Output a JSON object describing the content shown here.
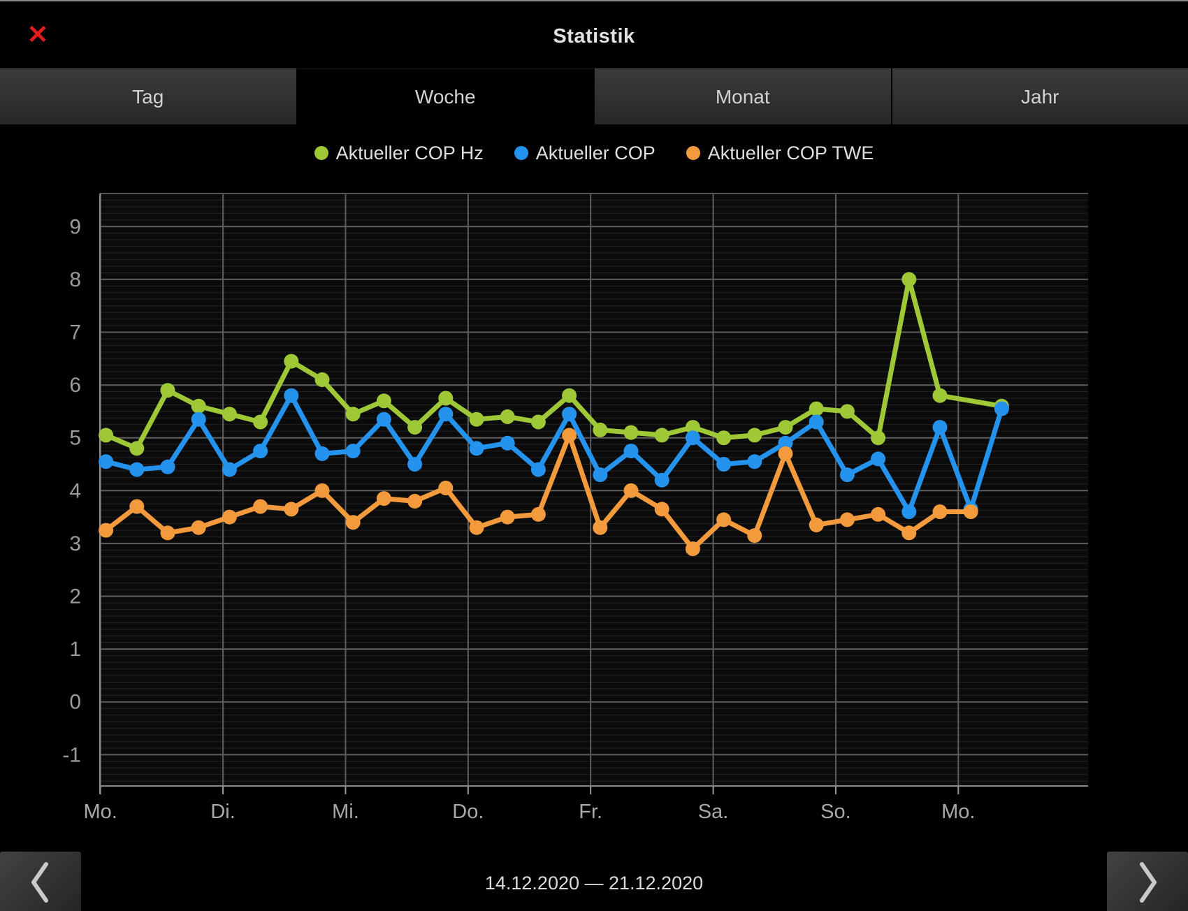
{
  "window": {
    "title": "Statistik",
    "close_icon": "close-icon"
  },
  "tabs": [
    {
      "label": "Tag",
      "active": false
    },
    {
      "label": "Woche",
      "active": true
    },
    {
      "label": "Monat",
      "active": false
    },
    {
      "label": "Jahr",
      "active": false
    }
  ],
  "legend": [
    {
      "label": "Aktueller COP Hz",
      "color": "#9fc836"
    },
    {
      "label": "Aktueller COP",
      "color": "#2493ee"
    },
    {
      "label": "Aktueller COP TWE",
      "color": "#f39a3d"
    }
  ],
  "chart_data": {
    "type": "line",
    "title": "",
    "xlabel": "",
    "ylabel": "",
    "x_tick_labels": [
      "Mo.",
      "Di.",
      "Mi.",
      "Do.",
      "Fr.",
      "Sa.",
      "So.",
      "Mo."
    ],
    "y_ticks": [
      9,
      8,
      7,
      6,
      5,
      4,
      3,
      2,
      1,
      0,
      -1
    ],
    "ylim": [
      -1.6,
      9.9
    ],
    "grid": "major-and-minor",
    "minor_grid_interval": 0.125,
    "samples_per_day": 4,
    "legend_position": "top",
    "series": [
      {
        "name": "Aktueller COP Hz",
        "color": "#9fc836",
        "values": [
          5.05,
          4.8,
          5.9,
          5.6,
          5.45,
          5.3,
          6.45,
          6.1,
          5.45,
          5.7,
          5.2,
          5.75,
          5.35,
          5.4,
          5.3,
          5.8,
          5.15,
          5.1,
          5.05,
          5.2,
          5.0,
          5.05,
          5.2,
          5.55,
          5.5,
          5.0,
          8.0,
          5.8,
          null,
          5.6
        ]
      },
      {
        "name": "Aktueller COP",
        "color": "#2493ee",
        "values": [
          4.55,
          4.4,
          4.45,
          5.35,
          4.4,
          4.75,
          5.8,
          4.7,
          4.75,
          5.35,
          4.5,
          5.45,
          4.8,
          4.9,
          4.4,
          5.45,
          4.3,
          4.75,
          4.2,
          5.0,
          4.5,
          4.55,
          4.9,
          5.3,
          4.3,
          4.6,
          3.6,
          5.2,
          3.65,
          5.55
        ]
      },
      {
        "name": "Aktueller COP TWE",
        "color": "#f39a3d",
        "values": [
          3.25,
          3.7,
          3.2,
          3.3,
          3.5,
          3.7,
          3.65,
          4.0,
          3.4,
          3.85,
          3.8,
          4.05,
          3.3,
          3.5,
          3.55,
          5.05,
          3.3,
          4.0,
          3.65,
          2.9,
          3.45,
          3.15,
          4.7,
          3.35,
          3.45,
          3.55,
          3.2,
          3.6,
          3.6,
          null
        ]
      }
    ]
  },
  "footer": {
    "date_range": "14.12.2020 — 21.12.2020",
    "prev_icon": "chevron-left-icon",
    "next_icon": "chevron-right-icon"
  }
}
